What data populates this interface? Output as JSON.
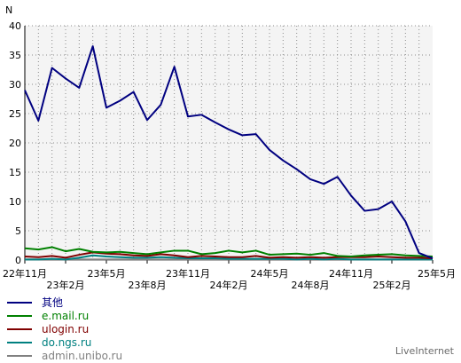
{
  "chart_data": {
    "type": "line",
    "ylabel": "N",
    "ylim": [
      0,
      40
    ],
    "yticks": [
      0,
      5,
      10,
      15,
      20,
      25,
      30,
      35,
      40
    ],
    "grid": true,
    "legend_placement": "bottom-left",
    "x_tick_labels": [
      {
        "label": "22年11月",
        "index": 0,
        "row": 0
      },
      {
        "label": "23年2月",
        "index": 3,
        "row": 1
      },
      {
        "label": "23年5月",
        "index": 6,
        "row": 0
      },
      {
        "label": "23年8月",
        "index": 9,
        "row": 1
      },
      {
        "label": "23年11月",
        "index": 12,
        "row": 0
      },
      {
        "label": "24年2月",
        "index": 15,
        "row": 1
      },
      {
        "label": "24年5月",
        "index": 18,
        "row": 0
      },
      {
        "label": "24年8月",
        "index": 21,
        "row": 1
      },
      {
        "label": "24年11月",
        "index": 24,
        "row": 0
      },
      {
        "label": "25年2月",
        "index": 27,
        "row": 1
      },
      {
        "label": "25年5月",
        "index": 30,
        "row": 0
      }
    ],
    "series": [
      {
        "name": "其他",
        "color": "#000080",
        "values": [
          29,
          23.8,
          32.8,
          31,
          29.4,
          36.5,
          26,
          27.2,
          28.7,
          23.9,
          26.5,
          33,
          24.5,
          24.8,
          23.5,
          22.3,
          21.3,
          21.5,
          18.8,
          17,
          15.5,
          13.8,
          13,
          14.2,
          11,
          8.4,
          8.7,
          10,
          6.6,
          1.2,
          0.3
        ]
      },
      {
        "name": "e.mail.ru",
        "color": "#008000",
        "values": [
          2,
          1.8,
          2.2,
          1.5,
          1.9,
          1.4,
          1.3,
          1.4,
          1.2,
          1,
          1.3,
          1.6,
          1.6,
          1,
          1.2,
          1.6,
          1.3,
          1.6,
          0.9,
          1,
          1.1,
          0.9,
          1.2,
          0.7,
          0.6,
          0.8,
          0.9,
          1,
          0.8,
          0.7,
          0.6
        ]
      },
      {
        "name": "ulogin.ru",
        "color": "#800000",
        "values": [
          0.6,
          0.5,
          0.7,
          0.4,
          0.9,
          1.3,
          1.1,
          1,
          0.8,
          0.7,
          1,
          0.8,
          0.5,
          0.7,
          0.6,
          0.5,
          0.5,
          0.7,
          0.4,
          0.5,
          0.4,
          0.5,
          0.4,
          0.5,
          0.5,
          0.5,
          0.6,
          0.5,
          0.4,
          0.4,
          0.3
        ]
      },
      {
        "name": "do.ngs.ru",
        "color": "#008080",
        "values": [
          0.1,
          0.1,
          0.2,
          0.1,
          0.4,
          0.8,
          0.6,
          0.5,
          0.4,
          0.4,
          0.5,
          0.4,
          0.3,
          0.3,
          0.3,
          0.2,
          0.2,
          0.2,
          0.2,
          0.2,
          0.1,
          0.2,
          0.1,
          0.2,
          0.1,
          0.1,
          0.1,
          0.1,
          0.1,
          0.1,
          0.1
        ]
      },
      {
        "name": "admin.unibo.ru",
        "color": "#808080",
        "values": [
          0.1,
          0.1,
          0.1,
          0.1,
          0.1,
          0.1,
          0.1,
          0.1,
          0.1,
          0.1,
          0.1,
          0.1,
          0.1,
          0.1,
          0.1,
          0.1,
          0.1,
          0.1,
          0.1,
          0.1,
          0.1,
          0.1,
          0.1,
          0.1,
          0.1,
          0.1,
          0.1,
          0.1,
          0.1,
          0.1,
          0.1
        ]
      }
    ]
  },
  "brand": "LiveInternet"
}
